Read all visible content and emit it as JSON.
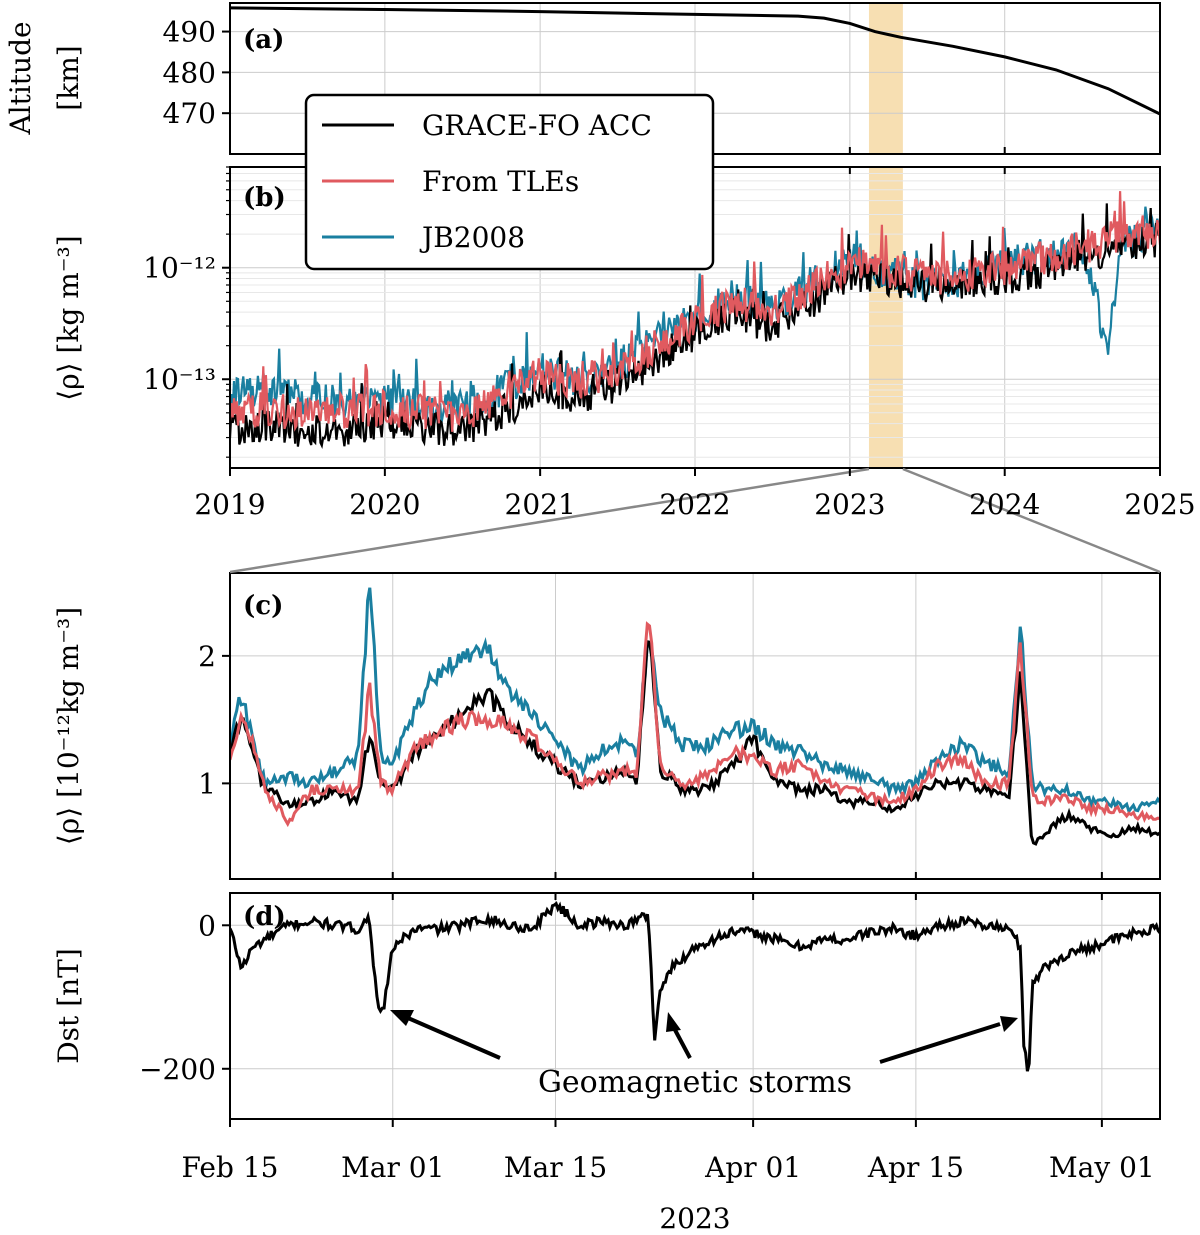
{
  "colors": {
    "grace": "#000000",
    "tle": "#e05a5f",
    "jb2008": "#1a7fa0",
    "highlight": "#f7dfb2",
    "grid": "#cccccc",
    "zoom_lines": "#888888"
  },
  "legend": {
    "placement": "upper-left of panel (a)/(b)",
    "entries": [
      "GRACE-FO ACC",
      "From TLEs",
      "JB2008"
    ]
  },
  "highlight_window": {
    "start": "2023-02-15",
    "end": "2023-05-06"
  },
  "chart_data": [
    {
      "panel_label": "(a)",
      "type": "line",
      "ylabel_line1": "Altitude",
      "ylabel_line2": "[km]",
      "x_range": [
        "2019-01-01",
        "2025-01-01"
      ],
      "ylim": [
        460,
        497
      ],
      "yticks": [
        "490",
        "480",
        "470"
      ],
      "series": [
        {
          "name": "GRACE-FO ACC",
          "x": [
            "2019-01-01",
            "2020-01-01",
            "2021-01-01",
            "2022-01-01",
            "2022-09-01",
            "2022-11-01",
            "2023-01-01",
            "2023-03-01",
            "2023-05-01",
            "2023-09-01",
            "2024-01-01",
            "2024-05-01",
            "2024-09-01",
            "2025-01-01"
          ],
          "y": [
            495.8,
            495.4,
            494.9,
            494.2,
            493.8,
            493.3,
            492,
            490,
            488.6,
            486.4,
            483.8,
            480.6,
            476,
            469.8
          ]
        }
      ]
    },
    {
      "panel_label": "(b)",
      "type": "line",
      "scale": "log",
      "ylabel": "⟨ρ⟩ [kg m⁻³]",
      "x_range": [
        "2019-01-01",
        "2025-01-01"
      ],
      "ylim": [
        1.6e-14,
        8e-12
      ],
      "yticks": [
        "10⁻¹²",
        "10⁻¹³"
      ],
      "xticks": [
        "2019",
        "2020",
        "2021",
        "2022",
        "2023",
        "2024",
        "2025"
      ],
      "series": [
        {
          "name": "GRACE-FO ACC",
          "x": [
            "2019-01-01",
            "2019-04-01",
            "2019-07-01",
            "2019-10-01",
            "2020-01-01",
            "2020-04-01",
            "2020-07-01",
            "2020-10-01",
            "2021-01-01",
            "2021-04-01",
            "2021-07-01",
            "2021-10-01",
            "2022-01-01",
            "2022-04-01",
            "2022-07-01",
            "2022-10-01",
            "2023-01-01",
            "2023-04-01",
            "2023-07-01",
            "2023-10-01",
            "2024-01-01",
            "2024-04-01",
            "2024-07-01",
            "2024-10-01",
            "2025-01-01"
          ],
          "y": [
            3.5e-14,
            3.8e-14,
            3.3e-14,
            3.6e-14,
            4e-14,
            3.8e-14,
            3.5e-14,
            5e-14,
            8e-14,
            7e-14,
            9e-14,
            1.5e-13,
            2.5e-13,
            4e-13,
            3e-13,
            5e-13,
            9e-13,
            8e-13,
            7e-13,
            7.5e-13,
            8e-13,
            9.5e-13,
            1.3e-12,
            1.6e-12,
            1.8e-12
          ]
        },
        {
          "name": "From TLEs",
          "x": [
            "2019-01-01",
            "2019-04-01",
            "2019-07-01",
            "2019-10-01",
            "2020-01-01",
            "2020-04-01",
            "2020-07-01",
            "2020-10-01",
            "2021-01-01",
            "2021-04-01",
            "2021-07-01",
            "2021-10-01",
            "2022-01-01",
            "2022-04-01",
            "2022-07-01",
            "2022-10-01",
            "2023-01-01",
            "2023-04-01",
            "2023-07-01",
            "2023-10-01",
            "2024-01-01",
            "2024-04-01",
            "2024-07-01",
            "2024-10-01",
            "2025-01-01"
          ],
          "y": [
            5e-14,
            5.5e-14,
            4.8e-14,
            5.2e-14,
            5.5e-14,
            5e-14,
            4.8e-14,
            7e-14,
            1.1e-13,
            9.5e-14,
            1.2e-13,
            2e-13,
            3.3e-13,
            5e-13,
            4.2e-13,
            6.5e-13,
            1.1e-12,
            9.5e-13,
            8e-13,
            8.5e-13,
            1e-12,
            1.2e-12,
            1.5e-12,
            2e-12,
            2.2e-12
          ]
        },
        {
          "name": "JB2008",
          "x": [
            "2019-01-01",
            "2019-04-01",
            "2019-07-01",
            "2019-10-01",
            "2020-01-01",
            "2020-04-01",
            "2020-07-01",
            "2020-10-01",
            "2021-01-01",
            "2021-04-01",
            "2021-07-01",
            "2021-10-01",
            "2022-01-01",
            "2022-04-01",
            "2022-07-01",
            "2022-10-01",
            "2023-01-01",
            "2023-04-01",
            "2023-07-01",
            "2023-10-01",
            "2024-01-01",
            "2024-04-01",
            "2024-07-01",
            "2024-09-01",
            "2024-10-01",
            "2025-01-01"
          ],
          "y": [
            7e-14,
            8e-14,
            6.5e-14,
            6.5e-14,
            6.5e-14,
            6e-14,
            5.5e-14,
            8e-14,
            1.2e-13,
            1e-13,
            1.3e-13,
            2.2e-13,
            3.5e-13,
            5.5e-13,
            4.5e-13,
            7e-13,
            1.2e-12,
            9e-13,
            7e-13,
            8e-13,
            1.1e-12,
            1.3e-12,
            1.5e-12,
            2e-13,
            1.5e-12,
            2.5e-12
          ]
        }
      ]
    },
    {
      "panel_label": "(c)",
      "type": "line",
      "ylabel": "⟨ρ⟩ [10⁻¹²kg m⁻³]",
      "x_range": [
        "2023-02-15",
        "2023-05-06"
      ],
      "ylim": [
        0.25,
        2.65
      ],
      "yticks": [
        "2",
        "1"
      ],
      "series": [
        {
          "name": "GRACE-FO ACC",
          "x": [
            "02-15",
            "02-16",
            "02-17",
            "02-18",
            "02-20",
            "02-22",
            "02-24",
            "02-26",
            "02-27",
            "02-28",
            "03-01",
            "03-03",
            "03-05",
            "03-07",
            "03-09",
            "03-11",
            "03-13",
            "03-15",
            "03-17",
            "03-19",
            "03-21",
            "03-22",
            "03-23",
            "03-24",
            "03-26",
            "03-28",
            "03-30",
            "04-01",
            "04-03",
            "04-05",
            "04-07",
            "04-09",
            "04-11",
            "04-13",
            "04-15",
            "04-17",
            "04-19",
            "04-21",
            "04-23",
            "04-24",
            "04-25",
            "04-26",
            "04-28",
            "04-30",
            "05-02",
            "05-04",
            "05-06"
          ],
          "y": [
            1.25,
            1.5,
            1.2,
            0.95,
            0.85,
            0.85,
            0.95,
            0.85,
            1.4,
            1.0,
            0.95,
            1.25,
            1.4,
            1.55,
            1.7,
            1.5,
            1.3,
            1.15,
            1.0,
            1.05,
            1.1,
            1.0,
            2.25,
            1.1,
            0.95,
            0.95,
            1.1,
            1.35,
            1.0,
            0.95,
            0.95,
            0.85,
            0.85,
            0.8,
            0.9,
            1.0,
            1.0,
            0.95,
            0.9,
            1.85,
            0.5,
            0.6,
            0.75,
            0.65,
            0.6,
            0.65,
            0.6
          ]
        },
        {
          "name": "From TLEs",
          "x": [
            "02-15",
            "02-16",
            "02-17",
            "02-18",
            "02-20",
            "02-22",
            "02-24",
            "02-26",
            "02-27",
            "02-28",
            "03-01",
            "03-03",
            "03-05",
            "03-07",
            "03-09",
            "03-11",
            "03-13",
            "03-15",
            "03-17",
            "03-19",
            "03-21",
            "03-22",
            "03-23",
            "03-24",
            "03-26",
            "03-28",
            "03-30",
            "04-01",
            "04-03",
            "04-05",
            "04-07",
            "04-09",
            "04-11",
            "04-13",
            "04-15",
            "04-17",
            "04-19",
            "04-21",
            "04-23",
            "04-24",
            "04-25",
            "04-26",
            "04-28",
            "04-30",
            "05-02",
            "05-04",
            "05-06"
          ],
          "y": [
            1.2,
            1.5,
            1.3,
            0.95,
            0.7,
            0.95,
            0.95,
            0.95,
            1.75,
            1.0,
            0.95,
            1.3,
            1.4,
            1.5,
            1.5,
            1.45,
            1.35,
            1.2,
            1.0,
            1.05,
            1.1,
            1.05,
            2.4,
            1.15,
            1.0,
            1.05,
            1.25,
            1.2,
            1.1,
            1.15,
            1.0,
            0.95,
            0.9,
            0.85,
            0.95,
            1.15,
            1.2,
            1.0,
            1.0,
            2.1,
            0.9,
            0.85,
            0.9,
            0.8,
            0.8,
            0.75,
            0.75
          ]
        },
        {
          "name": "JB2008",
          "x": [
            "02-15",
            "02-16",
            "02-17",
            "02-18",
            "02-20",
            "02-22",
            "02-24",
            "02-26",
            "02-27",
            "02-28",
            "03-01",
            "03-03",
            "03-05",
            "03-07",
            "03-09",
            "03-11",
            "03-13",
            "03-15",
            "03-17",
            "03-19",
            "03-21",
            "03-22",
            "03-23",
            "03-24",
            "03-26",
            "03-28",
            "03-30",
            "04-01",
            "04-03",
            "04-05",
            "04-07",
            "04-09",
            "04-11",
            "04-13",
            "04-15",
            "04-17",
            "04-19",
            "04-21",
            "04-23",
            "04-24",
            "04-25",
            "04-26",
            "04-28",
            "04-30",
            "05-02",
            "05-04",
            "05-06"
          ],
          "y": [
            1.3,
            1.7,
            1.3,
            1.0,
            1.05,
            1.0,
            1.1,
            1.2,
            2.55,
            1.2,
            1.15,
            1.6,
            1.9,
            1.95,
            2.05,
            1.75,
            1.55,
            1.35,
            1.1,
            1.25,
            1.35,
            1.2,
            2.2,
            1.55,
            1.3,
            1.3,
            1.4,
            1.45,
            1.3,
            1.25,
            1.15,
            1.1,
            1.05,
            0.95,
            1.0,
            1.2,
            1.3,
            1.15,
            1.1,
            2.25,
            1.0,
            0.95,
            0.95,
            0.85,
            0.85,
            0.8,
            0.85
          ]
        }
      ]
    },
    {
      "panel_label": "(d)",
      "type": "line",
      "ylabel": "Dst [nT]",
      "x_range": [
        "2023-02-15",
        "2023-05-06"
      ],
      "ylim": [
        -270,
        45
      ],
      "yticks": [
        "0",
        "−200"
      ],
      "xticks": [
        "Feb 15",
        "Mar 01",
        "Mar 15",
        "Apr 01",
        "Apr 15",
        "May 01"
      ],
      "xlabel": "2023",
      "annotation": "Geomagnetic storms",
      "series": [
        {
          "name": "Dst",
          "x": [
            "02-15",
            "02-16",
            "02-17",
            "02-18",
            "02-20",
            "02-22",
            "02-24",
            "02-26",
            "02-27",
            "02-27.5",
            "02-28",
            "02-28.5",
            "03-01",
            "03-03",
            "03-05",
            "03-07",
            "03-09",
            "03-11",
            "03-13",
            "03-15",
            "03-17",
            "03-19",
            "03-21",
            "03-23",
            "03-23.5",
            "03-24",
            "03-25",
            "03-27",
            "03-30",
            "04-01",
            "04-03",
            "04-05",
            "04-07",
            "04-09",
            "04-11",
            "04-13",
            "04-15",
            "04-17",
            "04-19",
            "04-21",
            "04-23",
            "04-24",
            "04-24.3",
            "04-24.7",
            "04-25",
            "04-26",
            "04-28",
            "04-30",
            "05-02",
            "05-04",
            "05-06"
          ],
          "y": [
            -5,
            -60,
            -30,
            -20,
            0,
            5,
            0,
            -5,
            10,
            -80,
            -130,
            -90,
            -30,
            -5,
            -5,
            0,
            10,
            0,
            -5,
            30,
            0,
            5,
            0,
            15,
            -160,
            -90,
            -60,
            -30,
            -10,
            -10,
            -20,
            -30,
            -20,
            -20,
            -10,
            -5,
            -15,
            0,
            5,
            0,
            -5,
            -30,
            -170,
            -210,
            -80,
            -60,
            -40,
            -30,
            -20,
            -10,
            -5
          ]
        }
      ]
    }
  ]
}
